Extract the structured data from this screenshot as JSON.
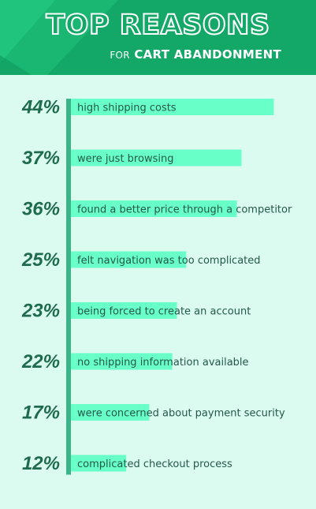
{
  "header": {
    "title": "TOP REASONS",
    "subtitle_lead": "FOR",
    "subtitle_rest": "CART ABANDONMENT"
  },
  "colors": {
    "header_bg": "#14a868",
    "page_bg": "#dcfbf0",
    "bar": "#69ffc8",
    "axis": "#3cb388",
    "percent_text": "#1e6b50",
    "label_text": "#24584a"
  },
  "chart_data": {
    "type": "bar",
    "orientation": "horizontal",
    "title": "TOP REASONS FOR CART ABANDONMENT",
    "categories": [
      "high shipping costs",
      "were just browsing",
      "found a better price through a competitor",
      "felt navigation was too complicated",
      "being forced to create an account",
      "no shipping information available",
      "were concerned about payment security",
      "complicated checkout process"
    ],
    "values": [
      44,
      37,
      36,
      25,
      23,
      22,
      17,
      12
    ],
    "value_labels": [
      "44%",
      "37%",
      "36%",
      "25%",
      "23%",
      "22%",
      "17%",
      "12%"
    ],
    "unit": "%",
    "xlim": [
      0,
      50
    ],
    "grid": false,
    "legend": "none"
  }
}
